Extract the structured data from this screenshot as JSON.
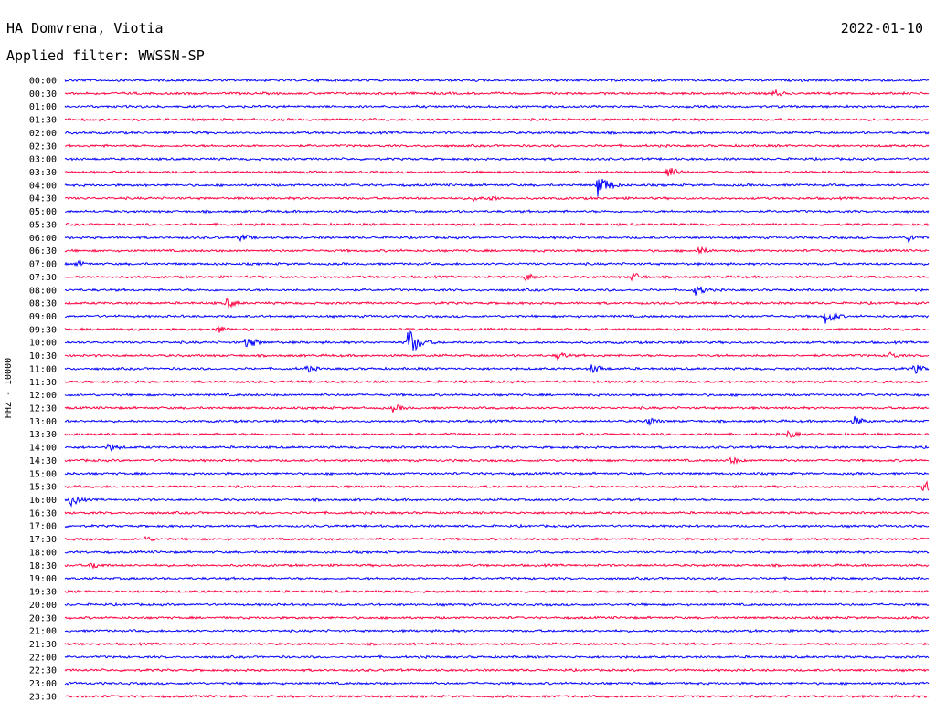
{
  "header": {
    "station": "HA Domvrena, Viotia",
    "date": "2022-01-10",
    "filter": "Applied filter: WWSSN-SP"
  },
  "channel_label": "HHZ - 10000",
  "colors": {
    "even_hour": "#0000ff",
    "half_hour": "#ff0040"
  },
  "chart_data": {
    "type": "line",
    "title": "HA Domvrena, Viotia",
    "ylabel": "HHZ - 10000",
    "grid": false,
    "legend": "none",
    "x_range_minutes": [
      0,
      30
    ],
    "rows": [
      "00:00",
      "00:30",
      "01:00",
      "01:30",
      "02:00",
      "02:30",
      "03:00",
      "03:30",
      "04:00",
      "04:30",
      "05:00",
      "05:30",
      "06:00",
      "06:30",
      "07:00",
      "07:30",
      "08:00",
      "08:30",
      "09:00",
      "09:30",
      "10:00",
      "10:30",
      "11:00",
      "11:30",
      "12:00",
      "12:30",
      "13:00",
      "13:30",
      "14:00",
      "14:30",
      "15:00",
      "15:30",
      "16:00",
      "16:30",
      "17:00",
      "17:30",
      "18:00",
      "18:30",
      "19:00",
      "19:30",
      "20:00",
      "20:30",
      "21:00",
      "21:30",
      "22:00",
      "22:30",
      "23:00",
      "23:30"
    ],
    "events": [
      {
        "row": "00:30",
        "minute": 24.6,
        "amp": 5
      },
      {
        "row": "03:30",
        "minute": 20.9,
        "amp": 8
      },
      {
        "row": "04:00",
        "minute": 18.5,
        "amp": 14
      },
      {
        "row": "04:30",
        "minute": 14.2,
        "amp": 4
      },
      {
        "row": "04:30",
        "minute": 14.8,
        "amp": 4
      },
      {
        "row": "06:00",
        "minute": 6.1,
        "amp": 5
      },
      {
        "row": "06:00",
        "minute": 29.3,
        "amp": 5
      },
      {
        "row": "06:30",
        "minute": 22.0,
        "amp": 5
      },
      {
        "row": "07:00",
        "minute": 0.4,
        "amp": 4
      },
      {
        "row": "07:30",
        "minute": 16.0,
        "amp": 5
      },
      {
        "row": "07:30",
        "minute": 19.7,
        "amp": 6
      },
      {
        "row": "08:00",
        "minute": 21.9,
        "amp": 7
      },
      {
        "row": "08:30",
        "minute": 5.6,
        "amp": 6
      },
      {
        "row": "09:00",
        "minute": 26.4,
        "amp": 9
      },
      {
        "row": "09:30",
        "minute": 5.3,
        "amp": 5
      },
      {
        "row": "10:00",
        "minute": 6.3,
        "amp": 8
      },
      {
        "row": "10:00",
        "minute": 11.9,
        "amp": 18
      },
      {
        "row": "10:30",
        "minute": 17.1,
        "amp": 5
      },
      {
        "row": "10:30",
        "minute": 28.6,
        "amp": 5
      },
      {
        "row": "11:00",
        "minute": 8.4,
        "amp": 5
      },
      {
        "row": "11:00",
        "minute": 18.3,
        "amp": 6
      },
      {
        "row": "11:00",
        "minute": 29.5,
        "amp": 6
      },
      {
        "row": "12:30",
        "minute": 11.4,
        "amp": 5
      },
      {
        "row": "13:00",
        "minute": 20.2,
        "amp": 6
      },
      {
        "row": "13:00",
        "minute": 27.4,
        "amp": 6
      },
      {
        "row": "13:30",
        "minute": 25.1,
        "amp": 5
      },
      {
        "row": "14:00",
        "minute": 1.5,
        "amp": 6
      },
      {
        "row": "14:30",
        "minute": 23.1,
        "amp": 5
      },
      {
        "row": "15:30",
        "minute": 29.8,
        "amp": 8
      },
      {
        "row": "16:00",
        "minute": 0.2,
        "amp": 7
      },
      {
        "row": "17:30",
        "minute": 2.8,
        "amp": 4
      },
      {
        "row": "18:30",
        "minute": 0.9,
        "amp": 5
      }
    ]
  }
}
